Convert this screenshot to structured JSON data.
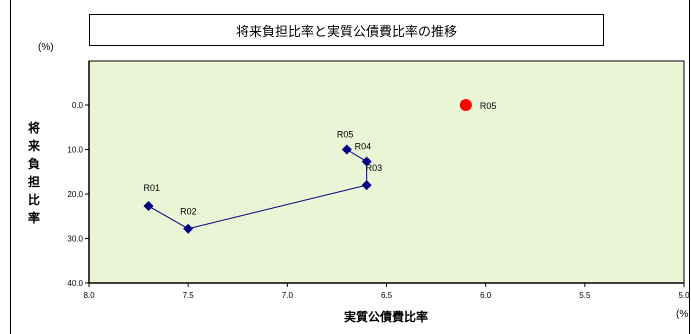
{
  "chart_data": {
    "type": "scatter",
    "title": "将来負担比率と実質公債費比率の推移",
    "xlabel": "実質公債費比率",
    "xlabel_unit": "(%",
    "ylabel": "将来負担比率",
    "ylabel_unit": "(%)",
    "xlim": [
      8.0,
      5.0
    ],
    "x_reversed": true,
    "ylim": [
      0.0,
      40.0
    ],
    "y_reversed": true,
    "y_axis_top_blank": true,
    "x_ticks": [
      "8.0",
      "7.5",
      "7.0",
      "6.5",
      "6.0",
      "5.5",
      "5.0"
    ],
    "y_ticks": [
      "0.0",
      "10.0",
      "20.0",
      "30.0",
      "40.0"
    ],
    "grid": false,
    "plot_background": "#EAF5D6",
    "series": [
      {
        "color": "#000080",
        "marker": "diamond",
        "connected": true,
        "points": [
          {
            "label": "R01",
            "x": 7.7,
            "y": 22.7
          },
          {
            "label": "R02",
            "x": 7.5,
            "y": 27.8
          },
          {
            "label": "R03",
            "x": 6.6,
            "y": 18.0
          },
          {
            "label": "R04",
            "x": 6.6,
            "y": 12.7
          },
          {
            "label": "R05",
            "x": 6.7,
            "y": 10.0
          }
        ]
      },
      {
        "color": "#FF0000",
        "marker": "circle",
        "connected": false,
        "points": [
          {
            "label": "R05",
            "x": 6.1,
            "y": 0.0
          }
        ]
      }
    ]
  }
}
